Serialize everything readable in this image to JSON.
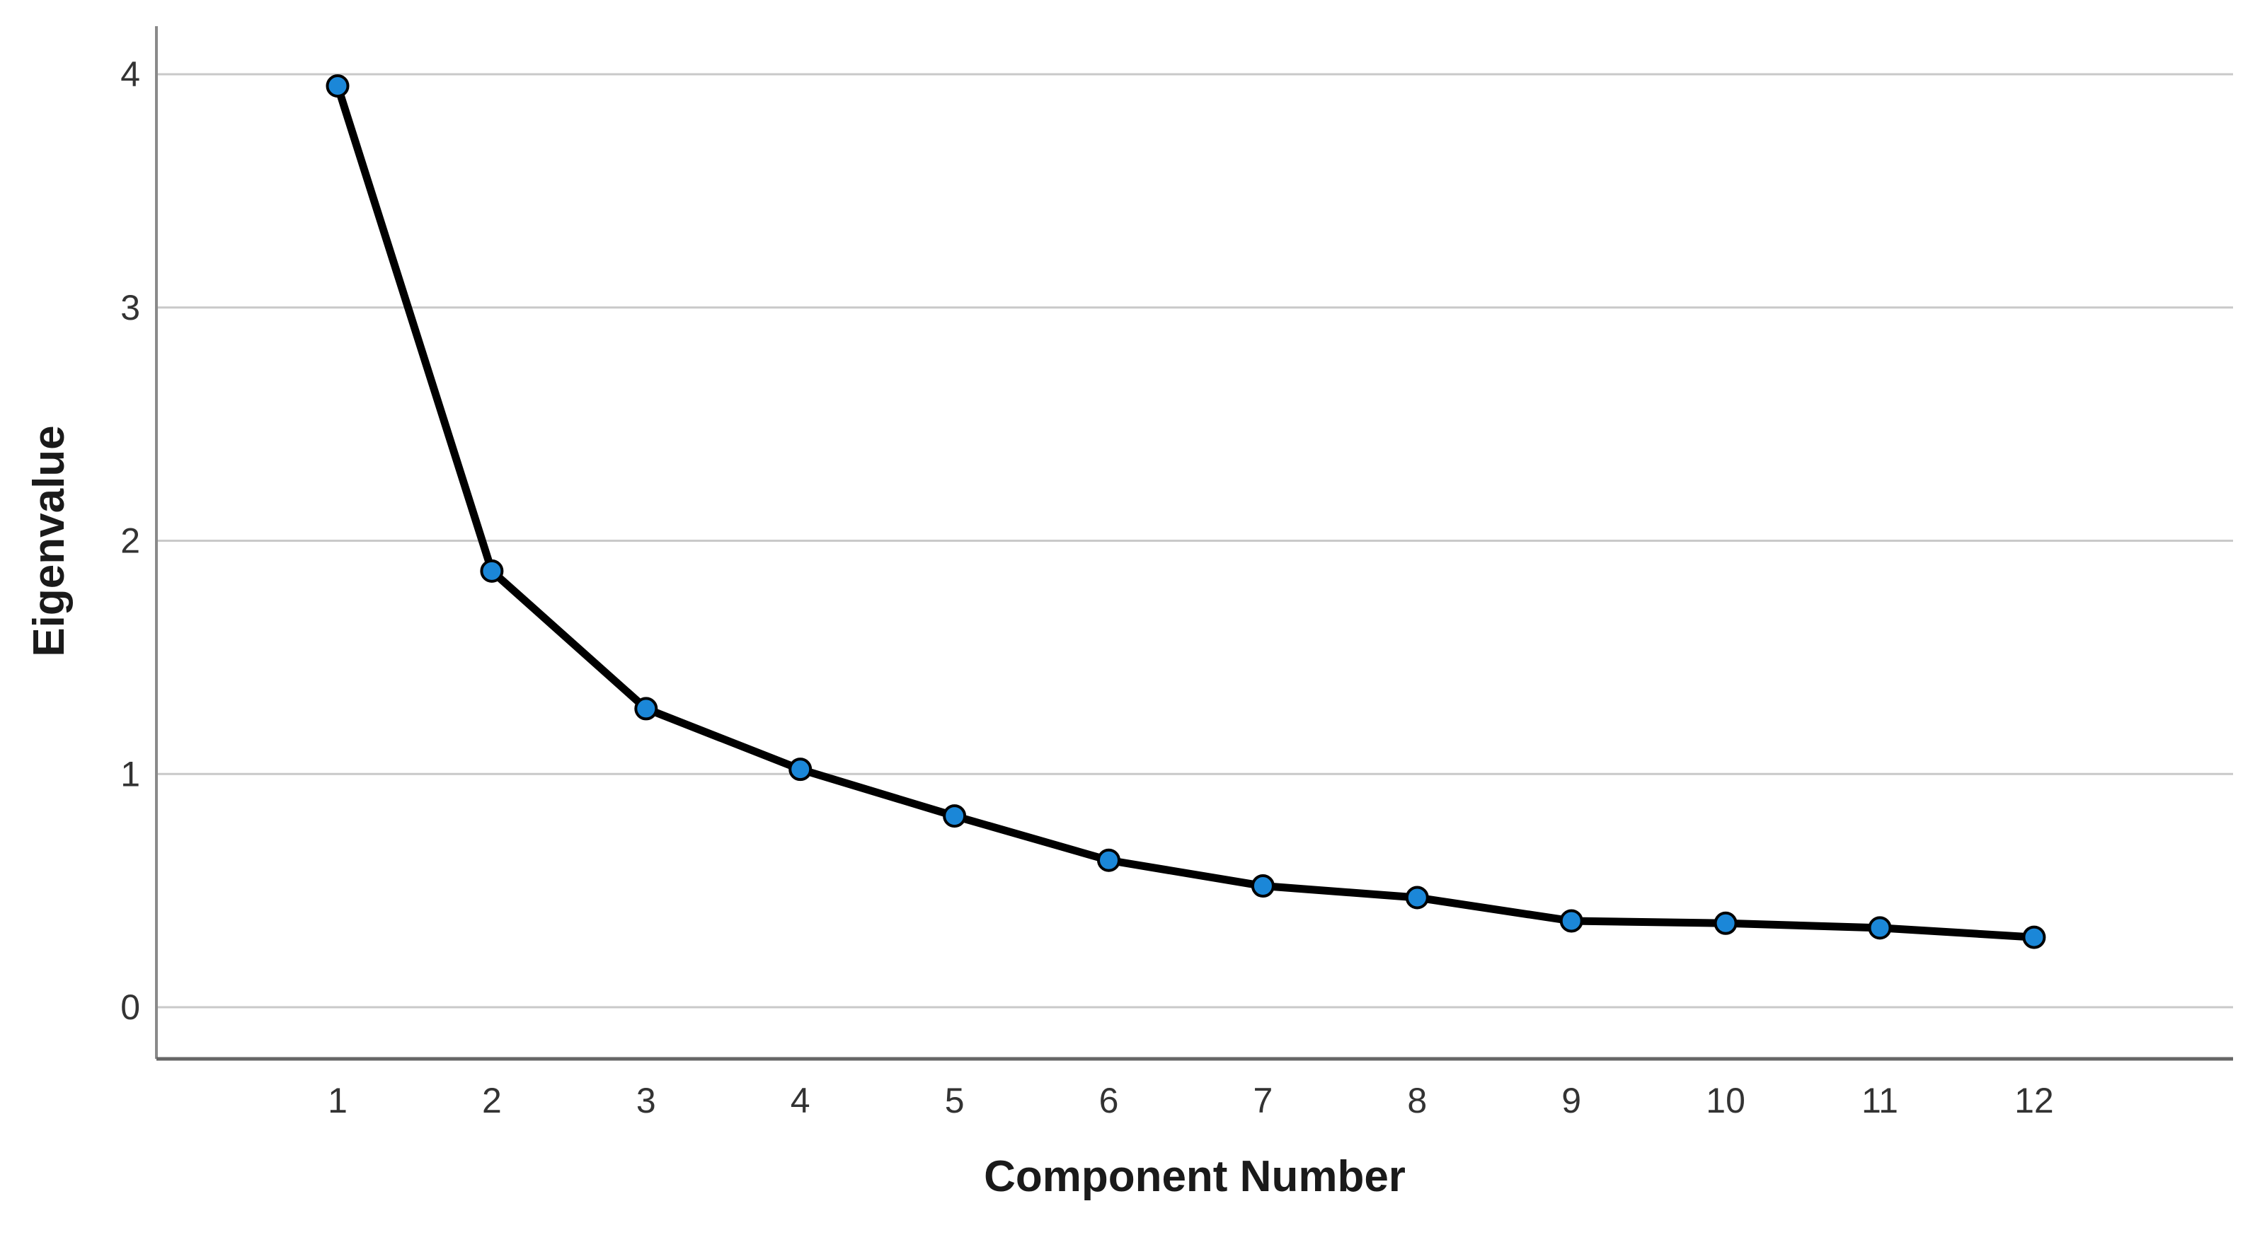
{
  "chart_data": {
    "type": "line",
    "title": "",
    "xlabel": "Component Number",
    "ylabel": "Eigenvalue",
    "categories": [
      "1",
      "2",
      "3",
      "4",
      "5",
      "6",
      "7",
      "8",
      "9",
      "10",
      "11",
      "12"
    ],
    "series": [
      {
        "name": "Eigenvalue",
        "values": [
          3.95,
          1.87,
          1.28,
          1.02,
          0.82,
          0.63,
          0.52,
          0.47,
          0.37,
          0.36,
          0.34,
          0.3
        ]
      }
    ],
    "yticks": [
      0,
      1,
      2,
      3,
      4
    ],
    "ylim": [
      -0.22,
      4.21
    ],
    "grid": "horizontal",
    "legend": "none",
    "marker": "circle",
    "colors": {
      "line": "#000000",
      "marker_fill": "#1b87d8",
      "marker_stroke": "#000000",
      "gridline": "#c9c9c9",
      "y_axis_line": "#8a8a8a",
      "x_axis_line": "#666666",
      "tick_text": "#333333",
      "title_text": "#1a1a1a"
    }
  }
}
